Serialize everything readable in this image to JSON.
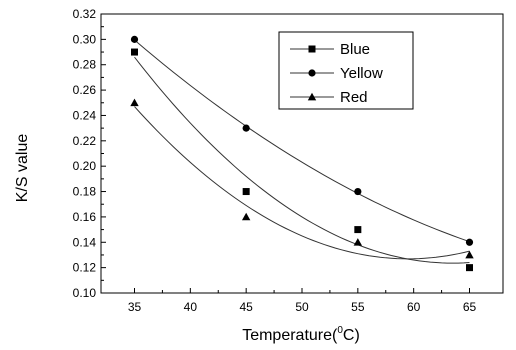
{
  "chart_data": {
    "type": "scatter",
    "xlabel": "Temperature(°C)",
    "xlabel_main": "Temperature(",
    "xlabel_sup": "0",
    "xlabel_tail": "C)",
    "ylabel": "K/S value",
    "xlim": [
      32,
      68
    ],
    "ylim": [
      0.1,
      0.32
    ],
    "x_ticks": [
      35,
      40,
      45,
      50,
      55,
      60,
      65
    ],
    "y_ticks": [
      0.1,
      0.12,
      0.14,
      0.16,
      0.18,
      0.2,
      0.22,
      0.24,
      0.26,
      0.28,
      0.3,
      0.32
    ],
    "grid": false,
    "legend_position": "top-center",
    "fit_curves": true,
    "series": [
      {
        "name": "Blue",
        "marker": "square",
        "x": [
          35,
          45,
          55,
          65
        ],
        "y": [
          0.29,
          0.18,
          0.15,
          0.12
        ]
      },
      {
        "name": "Yellow",
        "marker": "circle",
        "x": [
          35,
          45,
          55,
          65
        ],
        "y": [
          0.3,
          0.23,
          0.18,
          0.14
        ]
      },
      {
        "name": "Red",
        "marker": "triangle",
        "x": [
          35,
          45,
          55,
          65
        ],
        "y": [
          0.25,
          0.16,
          0.14,
          0.13
        ]
      }
    ],
    "colors": {
      "line": "#333333",
      "marker": "#000000",
      "axis": "#000000"
    }
  }
}
